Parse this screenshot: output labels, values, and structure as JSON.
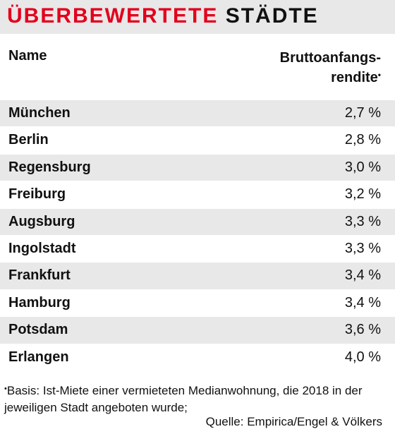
{
  "title": {
    "part_red": "ÜBERBEWERTETE",
    "part_dark": "STÄDTE"
  },
  "colors": {
    "accent": "#e3001b",
    "stripe": "#e8e8e8",
    "text": "#111111"
  },
  "table": {
    "header_name": "Name",
    "header_value_line1": "Bruttoanfangs-",
    "header_value_line2": "rendite",
    "header_marker": "•"
  },
  "chart_data": {
    "type": "table",
    "title": "ÜBERBEWERTETE STÄDTE",
    "columns": [
      "Name",
      "Bruttoanfangsrendite"
    ],
    "rows": [
      {
        "name": "München",
        "value": "2,7 %"
      },
      {
        "name": "Berlin",
        "value": "2,8 %"
      },
      {
        "name": "Regensburg",
        "value": "3,0 %"
      },
      {
        "name": "Freiburg",
        "value": "3,2 %"
      },
      {
        "name": "Augsburg",
        "value": "3,3 %"
      },
      {
        "name": "Ingolstadt",
        "value": "3,3 %"
      },
      {
        "name": "Frankfurt",
        "value": "3,4 %"
      },
      {
        "name": "Hamburg",
        "value": "3,4 %"
      },
      {
        "name": "Potsdam",
        "value": "3,6 %"
      },
      {
        "name": "Erlangen",
        "value": "4,0 %"
      }
    ]
  },
  "footnote": {
    "marker": "•",
    "text": "Basis: Ist-Miete einer vermieteten Medianwohnung, die 2018 in der jeweiligen Stadt angeboten wurde;"
  },
  "source": "Quelle: Empirica/Engel & Völkers"
}
